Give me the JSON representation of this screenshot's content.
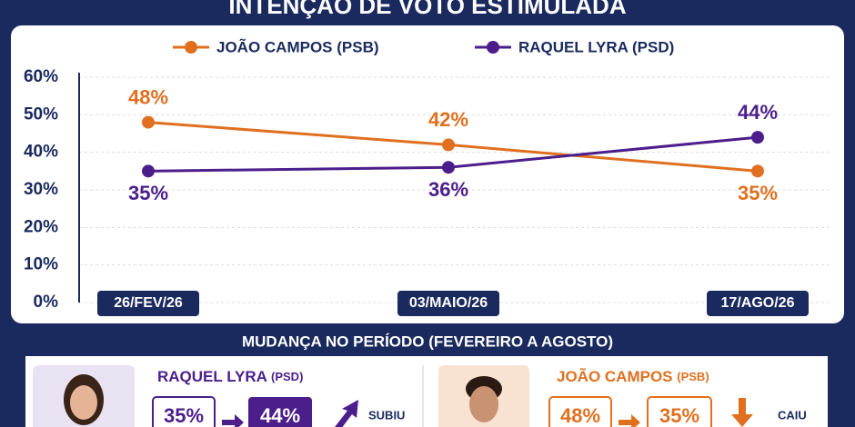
{
  "chart_data": {
    "type": "line",
    "title": "INTENÇÃO DE VOTO ESTIMULADA",
    "categories": [
      "26/FEV/26",
      "03/MAIO/26",
      "17/AGO/26"
    ],
    "series": [
      {
        "name": "JOÃO CAMPOS (PSB)",
        "color": "#e07020",
        "values": [
          48,
          42,
          35
        ],
        "value_labels": [
          "48%",
          "42%",
          "35%"
        ]
      },
      {
        "name": "RAQUEL LYRA (PSD)",
        "color": "#4b1e8c",
        "values": [
          35,
          36,
          44
        ],
        "value_labels": [
          "35%",
          "36%",
          "44%"
        ]
      }
    ],
    "ylim": [
      0,
      60
    ],
    "yticks": [
      {
        "value": 0,
        "label": "0%"
      },
      {
        "value": 10,
        "label": "10%"
      },
      {
        "value": 20,
        "label": "20%"
      },
      {
        "value": 30,
        "label": "30%"
      },
      {
        "value": 40,
        "label": "40%"
      },
      {
        "value": 50,
        "label": "50%"
      },
      {
        "value": 60,
        "label": "60%"
      }
    ],
    "grid": true
  },
  "change_panel": {
    "title": "MUDANÇA NO PERÍODO (FEVEREIRO A AGOSTO)",
    "cards": [
      {
        "name": "RAQUEL LYRA",
        "party": "(PSD)",
        "from": "35%",
        "to": "44%",
        "status": "SUBIU"
      },
      {
        "name": "JOÃO CAMPOS",
        "party": "(PSB)",
        "from": "48%",
        "to": "35%",
        "status": "CAIU"
      }
    ]
  }
}
